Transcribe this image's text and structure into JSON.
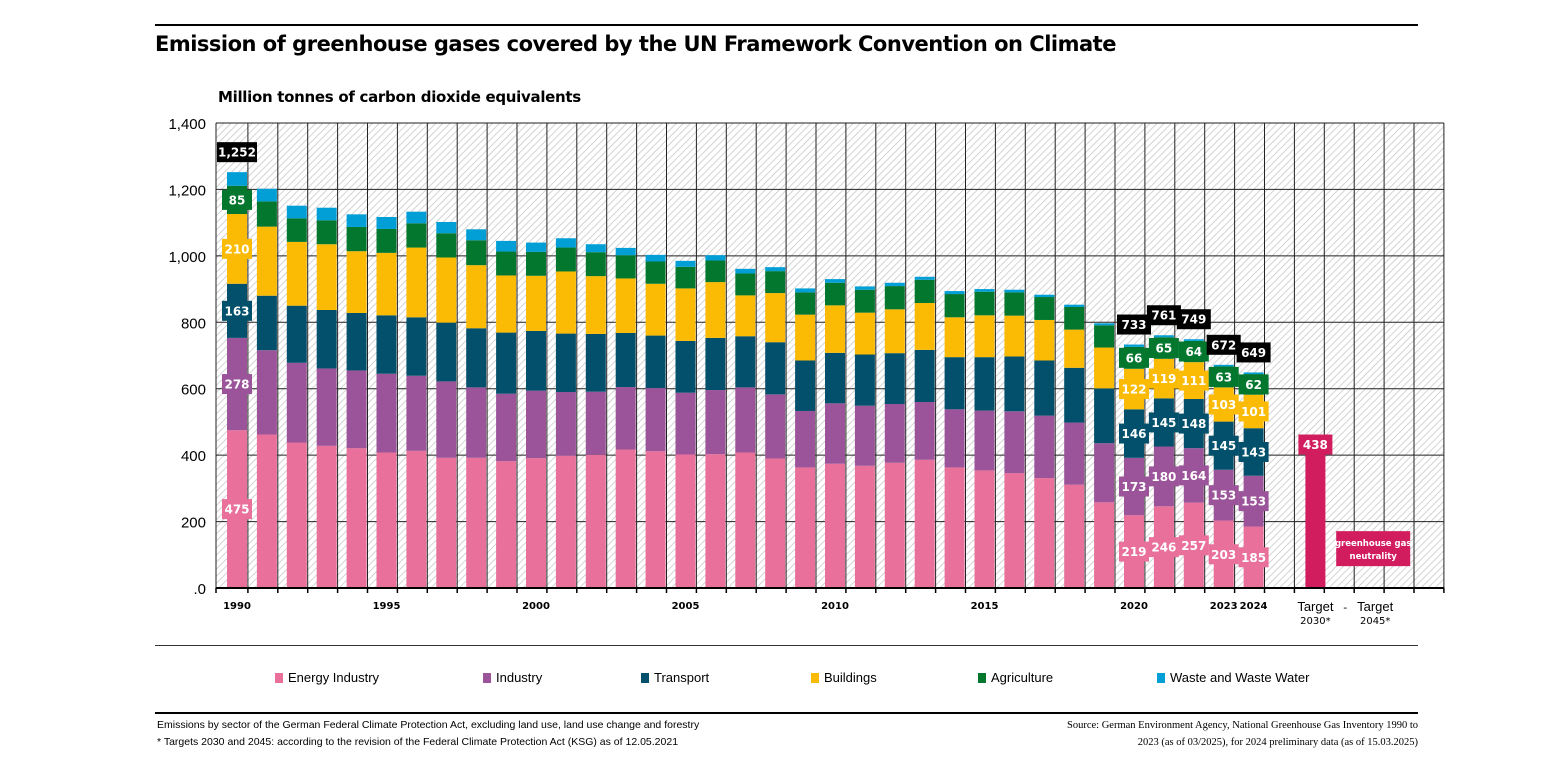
{
  "title": "Emission of greenhouse gases covered by the UN Framework Convention on Climate",
  "footnotes": {
    "left": [
      "Emissions by sector of the German Federal Climate Protection Act, excluding land use, land use change and forestry",
      "* Targets 2030 and 2045: according to the revision of the Federal Climate Protection Act (KSG) as of 12.05.2021"
    ],
    "right": [
      "Source: German Environment Agency, National Greenhouse Gas Inventory  1990 to",
      "2023 (as of 03/2025), for 2024 preliminary data (as of 15.03.2025)"
    ]
  },
  "chart_data": {
    "type": "bar",
    "stacked": true,
    "title": "Emission of greenhouse gases covered by the UN Framework Convention on Climate",
    "ylabel": "Million tonnes of carbon dioxide equivalents",
    "xlabel": "",
    "ylim": [
      0,
      1400
    ],
    "yticks": [
      0,
      200,
      400,
      600,
      800,
      1000,
      1200,
      1400
    ],
    "ytick_labels": [
      ".0",
      "200",
      "400",
      "600",
      "800",
      "1,000",
      "1,200",
      "1,400"
    ],
    "grid": true,
    "legend_position": "bottom",
    "categories": [
      "1990",
      "1991",
      "1992",
      "1993",
      "1994",
      "1995",
      "1996",
      "1997",
      "1998",
      "1999",
      "2000",
      "2001",
      "2002",
      "2003",
      "2004",
      "2005",
      "2006",
      "2007",
      "2008",
      "2009",
      "2010",
      "2011",
      "2012",
      "2013",
      "2014",
      "2015",
      "2016",
      "2017",
      "2018",
      "2019",
      "2020",
      "2021",
      "2022",
      "2023",
      "2024"
    ],
    "xtick_labels": {
      "1990": "1990",
      "1995": "1995",
      "2000": "2000",
      "2005": "2005",
      "2010": "2010",
      "2015": "2015",
      "2020": "2020",
      "2023": "2023",
      "2024": "2024"
    },
    "series": [
      {
        "name": "Energy Industry",
        "color": "#e8709a",
        "values": [
          475,
          462,
          438,
          428,
          421,
          408,
          413,
          392,
          392,
          382,
          391,
          398,
          401,
          417,
          412,
          402,
          403,
          408,
          390,
          363,
          374,
          368,
          377,
          386,
          363,
          354,
          346,
          331,
          311,
          258,
          219,
          246,
          257,
          203,
          185
        ]
      },
      {
        "name": "Industry",
        "color": "#9b5499",
        "values": [
          278,
          254,
          240,
          233,
          234,
          237,
          226,
          230,
          212,
          203,
          203,
          192,
          190,
          188,
          190,
          186,
          193,
          196,
          193,
          170,
          182,
          181,
          177,
          174,
          175,
          180,
          186,
          188,
          187,
          178,
          173,
          180,
          164,
          153,
          153
        ]
      },
      {
        "name": "Transport",
        "color": "#02506b",
        "values": [
          163,
          164,
          172,
          176,
          173,
          176,
          176,
          177,
          178,
          184,
          180,
          176,
          174,
          163,
          158,
          156,
          157,
          154,
          157,
          152,
          152,
          154,
          153,
          157,
          157,
          161,
          165,
          166,
          165,
          165,
          146,
          145,
          148,
          145,
          143
        ]
      },
      {
        "name": "Buildings",
        "color": "#fbbb05",
        "values": [
          210,
          208,
          192,
          198,
          186,
          188,
          210,
          196,
          190,
          172,
          166,
          187,
          174,
          164,
          156,
          158,
          168,
          123,
          148,
          138,
          143,
          126,
          132,
          141,
          120,
          126,
          123,
          122,
          115,
          123,
          122,
          119,
          111,
          103,
          101
        ]
      },
      {
        "name": "Agriculture",
        "color": "#03772d",
        "values": [
          85,
          76,
          71,
          72,
          73,
          72,
          73,
          73,
          75,
          72,
          72,
          72,
          72,
          70,
          67,
          65,
          65,
          66,
          66,
          67,
          68,
          69,
          70,
          70,
          70,
          71,
          70,
          69,
          68,
          67,
          66,
          65,
          64,
          63,
          62
        ]
      },
      {
        "name": "Waste and Waste Water",
        "color": "#029fd7",
        "values": [
          41,
          38,
          38,
          38,
          38,
          36,
          35,
          34,
          33,
          32,
          28,
          28,
          24,
          22,
          20,
          18,
          16,
          14,
          12,
          12,
          11,
          10,
          10,
          9,
          9,
          8,
          8,
          7,
          7,
          6,
          7,
          6,
          5,
          5,
          5
        ]
      }
    ],
    "labeled_years": {
      "1990": {
        "total": "1,252",
        "Energy Industry": "475",
        "Industry": "278",
        "Transport": "163",
        "Buildings": "210",
        "Agriculture": "85"
      },
      "2020": {
        "total": "733",
        "Energy Industry": "219",
        "Industry": "173",
        "Transport": "146",
        "Buildings": "122",
        "Agriculture": "66"
      },
      "2021": {
        "total": "761",
        "Energy Industry": "246",
        "Industry": "180",
        "Transport": "145",
        "Buildings": "119",
        "Agriculture": "65"
      },
      "2022": {
        "total": "749",
        "Energy Industry": "257",
        "Industry": "164",
        "Transport": "148",
        "Buildings": "111",
        "Agriculture": "64"
      },
      "2023": {
        "total": "672",
        "Energy Industry": "203",
        "Industry": "153",
        "Transport": "145",
        "Buildings": "103",
        "Agriculture": "63"
      },
      "2024": {
        "total": "649",
        "Energy Industry": "185",
        "Industry": "153",
        "Transport": "143",
        "Buildings": "101",
        "Agriculture": "62"
      }
    },
    "targets": [
      {
        "label": "Target",
        "sublabel": "2030*",
        "value": 438,
        "value_label": "438",
        "color": "#d11c5e"
      },
      {
        "label": "Target",
        "sublabel": "2045*",
        "value": 0,
        "value_label": "greenhouse gas neutrality",
        "color": "#d11c5e"
      }
    ],
    "target_separator": "-"
  }
}
